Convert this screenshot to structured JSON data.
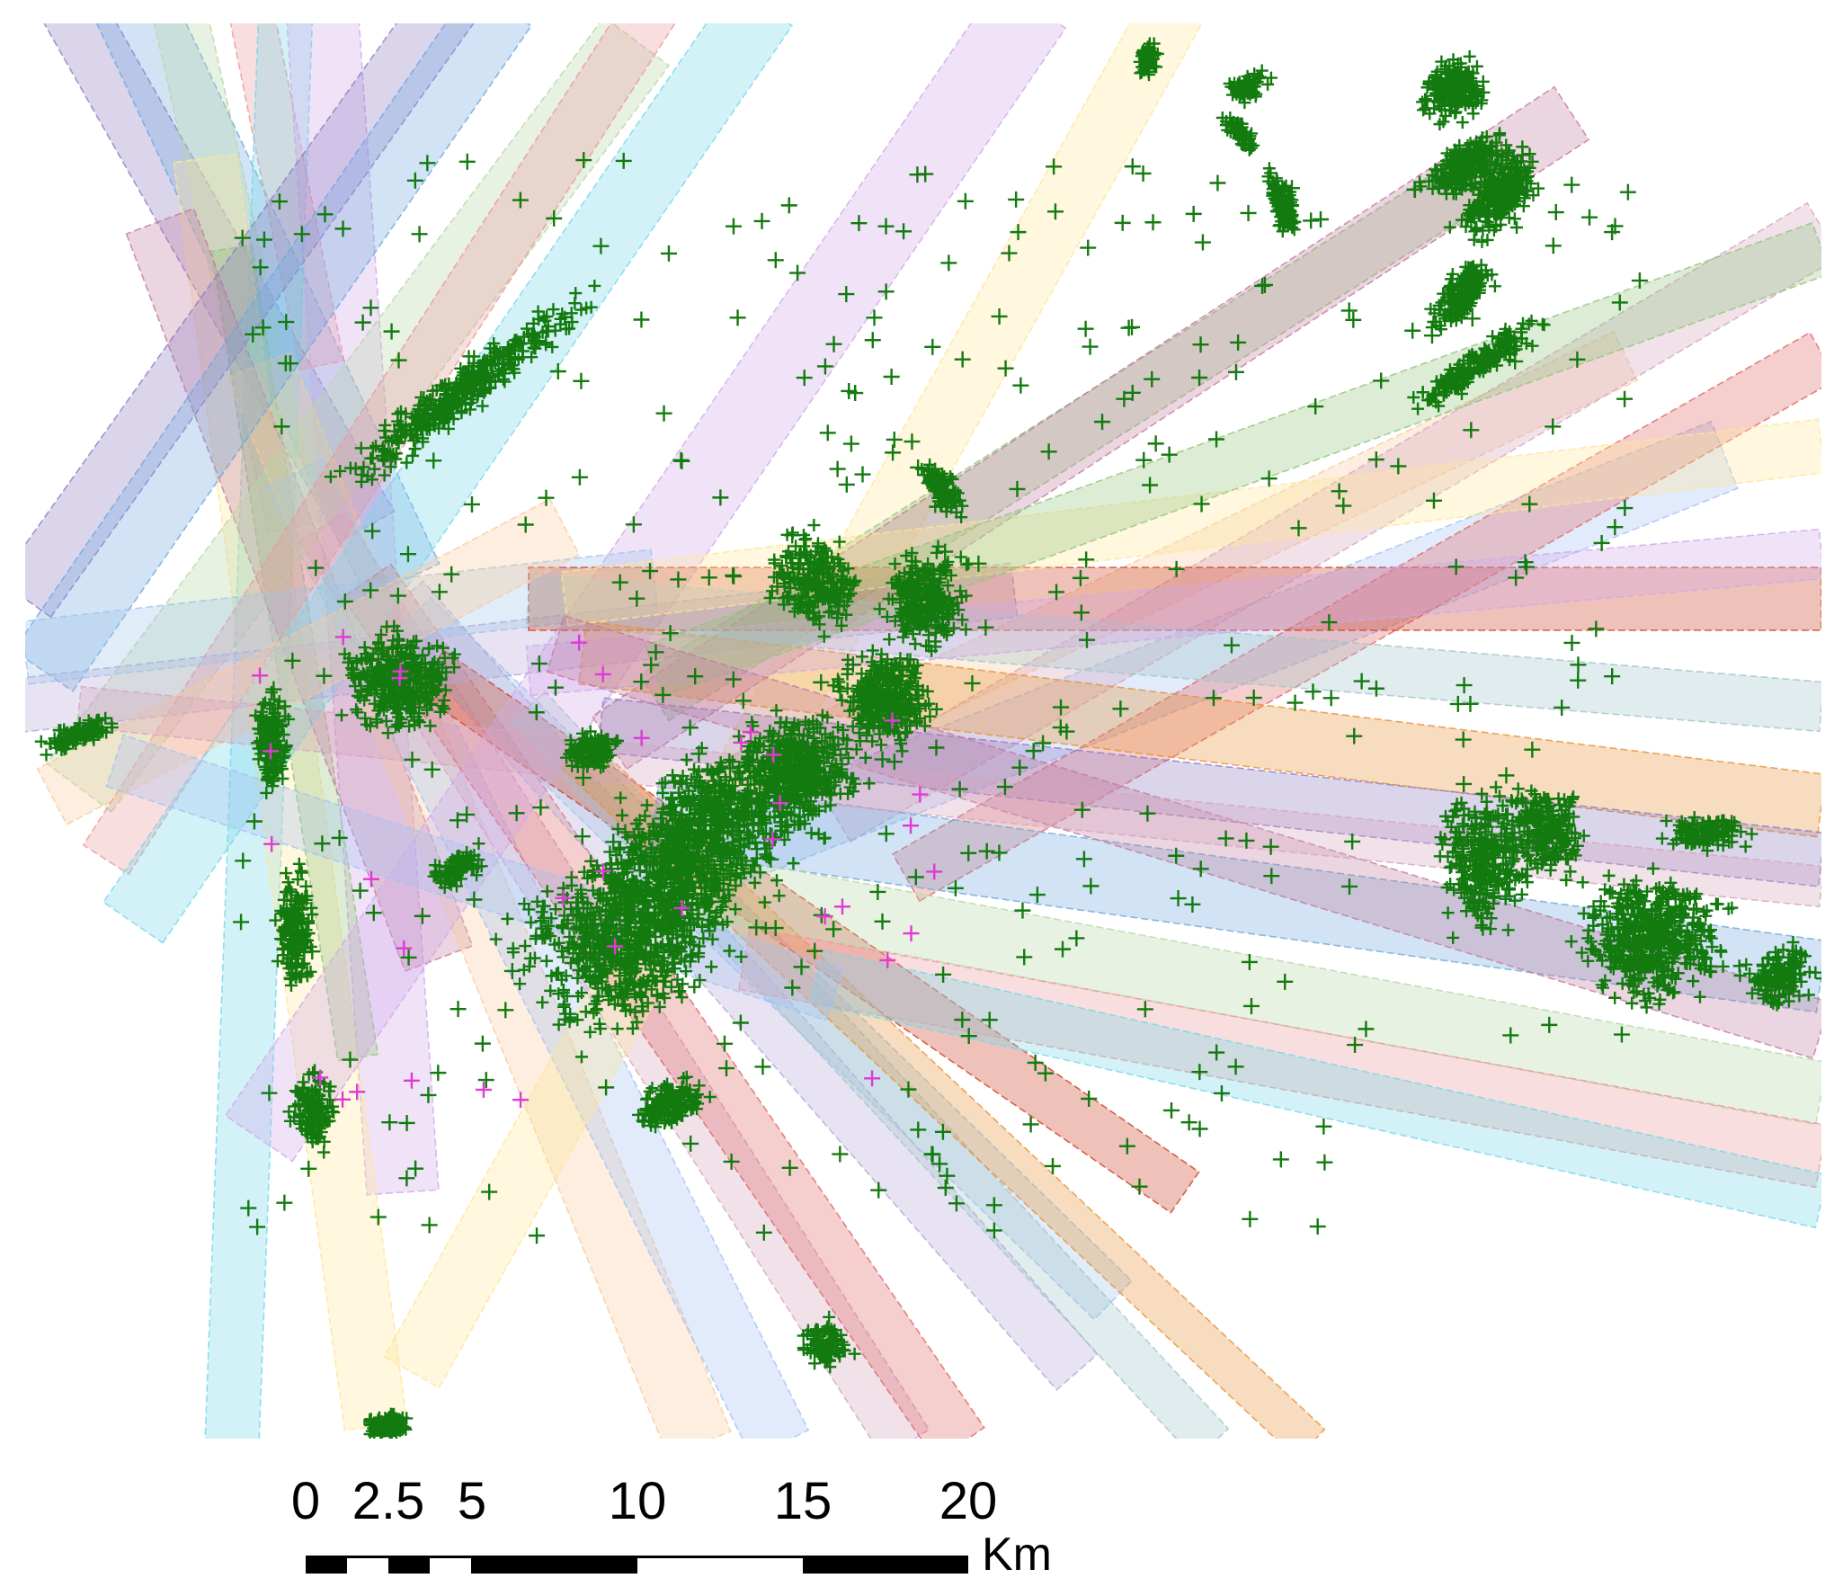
{
  "map": {
    "point_color": "#137a0f",
    "accent_point_color": "#e03ad6",
    "swath_colors": [
      "#8e7cc3",
      "#6fa8dc",
      "#b6d7a8",
      "#ea9999",
      "#76d7ea",
      "#cfa9e8",
      "#ffe599",
      "#93c47d",
      "#c27ba0",
      "#f9cb9c",
      "#a4c2f4",
      "#d5a6bd",
      "#e06666",
      "#b4a7d6",
      "#9fc5e8",
      "#cc4125",
      "#a2c4c9",
      "#e69138"
    ],
    "point_marker": "+"
  },
  "scale_bar": {
    "tick_labels": [
      "0",
      "2.5",
      "5",
      "10",
      "15",
      "20"
    ],
    "tick_values_km": [
      0,
      2.5,
      5,
      10,
      15,
      20
    ],
    "unit": "Km",
    "segment_pattern": [
      "black",
      "white",
      "black",
      "white",
      "black",
      "white",
      "black"
    ],
    "segment_breaks_km": [
      0,
      1.25,
      2.5,
      3.75,
      5,
      10,
      15,
      20
    ]
  }
}
